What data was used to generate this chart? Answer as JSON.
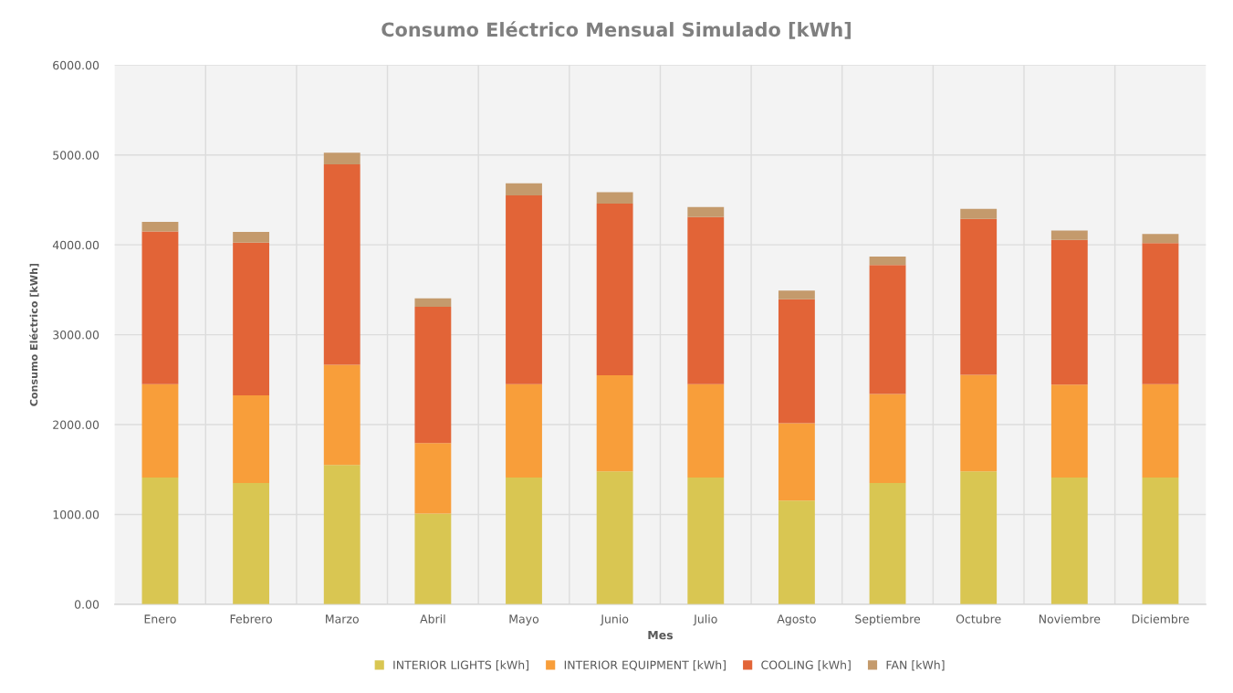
{
  "chart_data": {
    "type": "bar",
    "stacked": true,
    "title": "Consumo Eléctrico Mensual Simulado [kWh]",
    "xlabel": "Mes",
    "ylabel": "Consumo Eléctrico [kWh]",
    "categories": [
      "Enero",
      "Febrero",
      "Marzo",
      "Abril",
      "Mayo",
      "Junio",
      "Julio",
      "Agosto",
      "Septiembre",
      "Octubre",
      "Noviembre",
      "Diciembre"
    ],
    "series": [
      {
        "name": "INTERIOR LIGHTS [kWh]",
        "color": "#d9c652",
        "values": [
          1410,
          1350,
          1550,
          1010,
          1410,
          1480,
          1410,
          1155,
          1350,
          1480,
          1410,
          1410
        ]
      },
      {
        "name": "INTERIOR EQUIPMENT [kWh]",
        "color": "#f89e3a",
        "values": [
          1040,
          975,
          1115,
          785,
          1040,
          1070,
          1040,
          860,
          990,
          1075,
          1035,
          1040
        ]
      },
      {
        "name": "COOLING [kWh]",
        "color": "#e26437",
        "values": [
          1700,
          1700,
          2230,
          1515,
          2100,
          1910,
          1860,
          1380,
          1435,
          1735,
          1610,
          1570
        ]
      },
      {
        "name": "FAN [kWh]",
        "color": "#c49a6c",
        "values": [
          105,
          120,
          130,
          95,
          135,
          125,
          110,
          95,
          95,
          110,
          105,
          100
        ]
      }
    ],
    "ylim": [
      0,
      6000
    ],
    "yticks": [
      {
        "value": 0,
        "label": "0.00"
      },
      {
        "value": 1000,
        "label": "1000.00"
      },
      {
        "value": 2000,
        "label": "2000.00"
      },
      {
        "value": 3000,
        "label": "3000.00"
      },
      {
        "value": 4000,
        "label": "4000.00"
      },
      {
        "value": 5000,
        "label": "5000.00"
      },
      {
        "value": 6000,
        "label": "6000.00"
      }
    ],
    "grid": true,
    "legend": "bottom"
  }
}
